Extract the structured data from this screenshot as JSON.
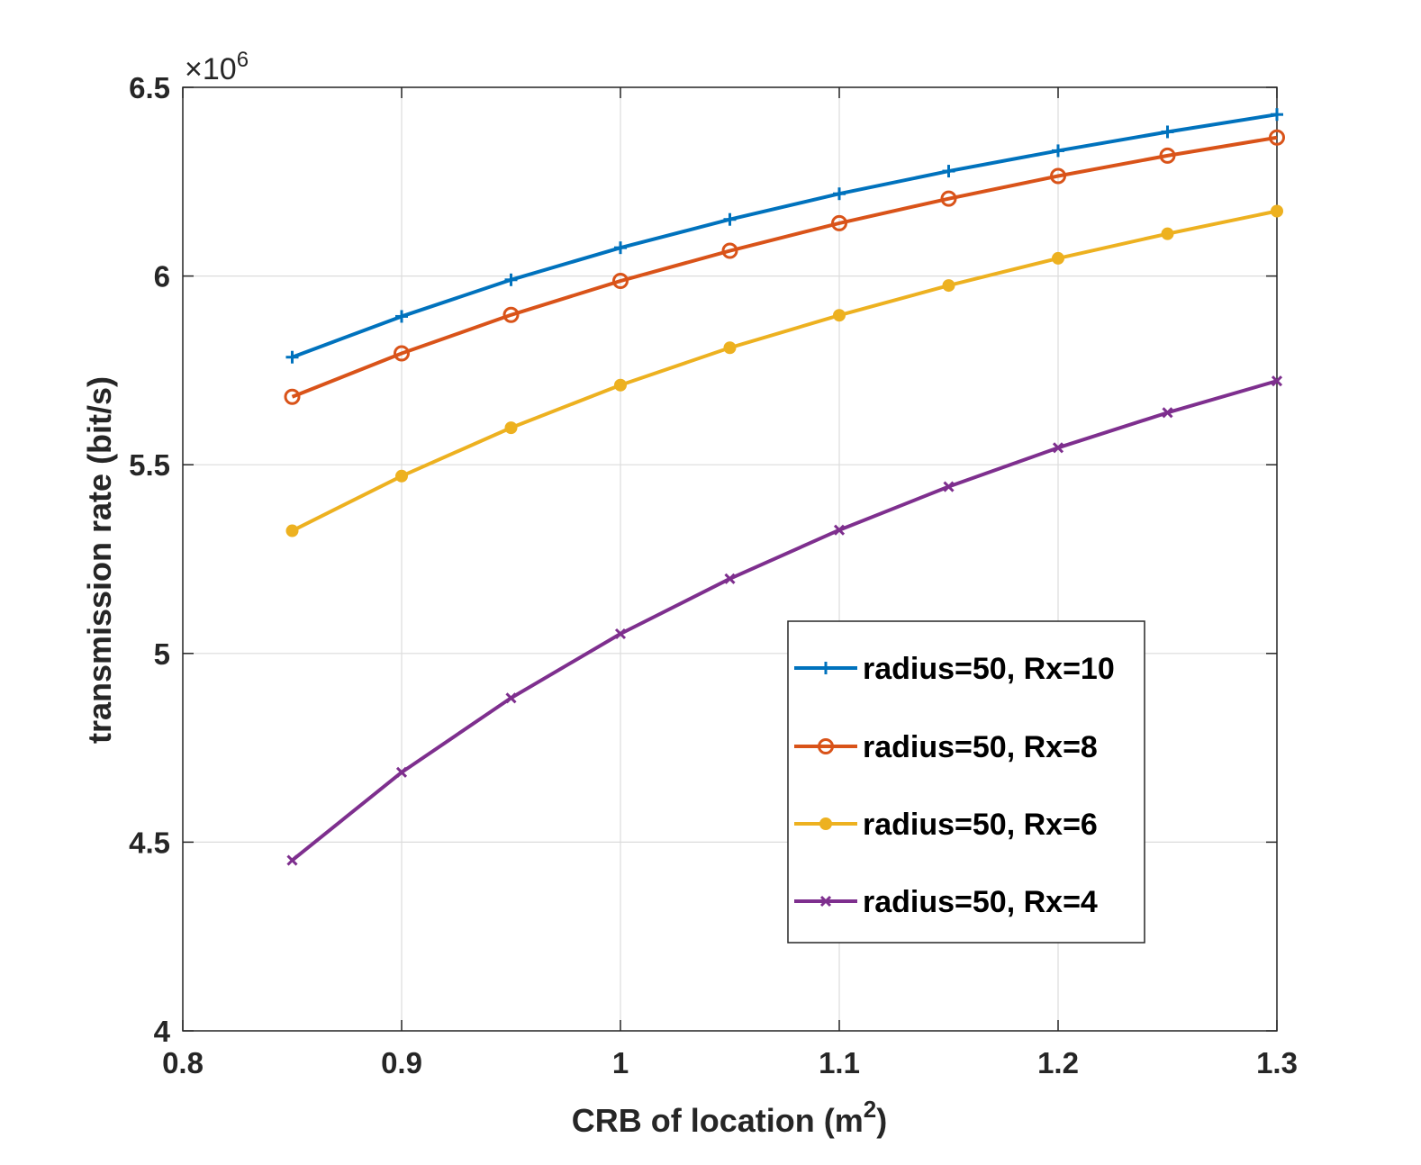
{
  "chart_data": {
    "type": "line",
    "title": "",
    "xlabel": "CRB of location (m",
    "xlabel_sup": "2",
    "xlabel_close": ")",
    "ylabel": "transmission rate (bit/s)",
    "y_multiplier": {
      "base": "×10",
      "exp": "6"
    },
    "xlim": [
      0.8,
      1.3
    ],
    "ylim": [
      4.0,
      6.5
    ],
    "grid": true,
    "legend_position": "lower-right-inside",
    "x_ticks": [
      0.8,
      0.9,
      1.0,
      1.1,
      1.2,
      1.3
    ],
    "x_tick_labels": [
      "0.8",
      "0.9",
      "1",
      "1.1",
      "1.2",
      "1.3"
    ],
    "y_ticks": [
      4.0,
      4.5,
      5.0,
      5.5,
      6.0,
      6.5
    ],
    "y_tick_labels": [
      "4",
      "4.5",
      "5",
      "5.5",
      "6",
      "6.5"
    ],
    "x": [
      0.85,
      0.9,
      0.95,
      1.0,
      1.05,
      1.1,
      1.15,
      1.2,
      1.25,
      1.3
    ],
    "series": [
      {
        "name": "radius=50, Rx=10",
        "color": "#0072BD",
        "marker": "plus",
        "values": [
          5.785,
          5.893,
          5.99,
          6.075,
          6.15,
          6.218,
          6.278,
          6.332,
          6.382,
          6.428
        ]
      },
      {
        "name": "radius=50, Rx=8",
        "color": "#D95319",
        "marker": "circle",
        "values": [
          5.68,
          5.795,
          5.897,
          5.987,
          6.067,
          6.14,
          6.205,
          6.265,
          6.319,
          6.367
        ]
      },
      {
        "name": "radius=50, Rx=6",
        "color": "#EDB120",
        "marker": "dot",
        "values": [
          5.325,
          5.47,
          5.598,
          5.711,
          5.81,
          5.896,
          5.975,
          6.047,
          6.112,
          6.172
        ]
      },
      {
        "name": "radius=50, Rx=4",
        "color": "#7E2F8E",
        "marker": "x",
        "values": [
          4.452,
          4.685,
          4.882,
          5.052,
          5.198,
          5.327,
          5.442,
          5.545,
          5.638,
          5.722
        ]
      }
    ]
  }
}
